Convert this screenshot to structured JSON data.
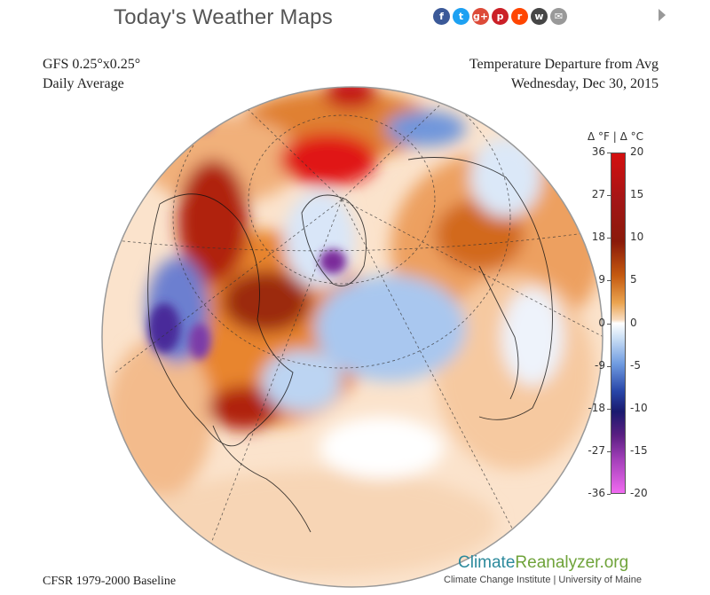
{
  "header": {
    "title": "Today's Weather Maps",
    "social": [
      {
        "icon": "facebook-icon",
        "glyph": "f",
        "color": "#3b5998"
      },
      {
        "icon": "twitter-icon",
        "glyph": "t",
        "color": "#1da1f2"
      },
      {
        "icon": "google-plus-icon",
        "glyph": "g+",
        "color": "#dd4b39"
      },
      {
        "icon": "pinterest-icon",
        "glyph": "p",
        "color": "#cb2027"
      },
      {
        "icon": "reddit-icon",
        "glyph": "r",
        "color": "#ff4500"
      },
      {
        "icon": "wordpress-icon",
        "glyph": "w",
        "color": "#464646"
      },
      {
        "icon": "email-icon",
        "glyph": "✉",
        "color": "#999999"
      }
    ],
    "next_icon": "chevron-right-icon"
  },
  "map": {
    "model": "GFS 0.25°x0.25°",
    "averaging": "Daily Average",
    "variable": "Temperature Departure from Avg",
    "date": "Wednesday, Dec 30, 2015",
    "baseline": "CFSR 1979-2000 Baseline"
  },
  "colorbar": {
    "title": "Δ °F  |  Δ °C",
    "fahrenheit_ticks": [
      "36",
      "27",
      "18",
      "9",
      "0",
      "-9",
      "-18",
      "-27",
      "-36"
    ],
    "celsius_ticks": [
      "20",
      "15",
      "10",
      "5",
      "0",
      "-5",
      "-10",
      "-15",
      "-20"
    ],
    "colors": {
      "warm_max": "#d41010",
      "neutral": "#ffffff",
      "cold": "#2846a8",
      "cold_min": "#f06af0"
    }
  },
  "footer": {
    "brand_part1": "Climate",
    "brand_part2": "Reanalyzer.org",
    "affiliation": "Climate Change Institute | University of Maine"
  }
}
